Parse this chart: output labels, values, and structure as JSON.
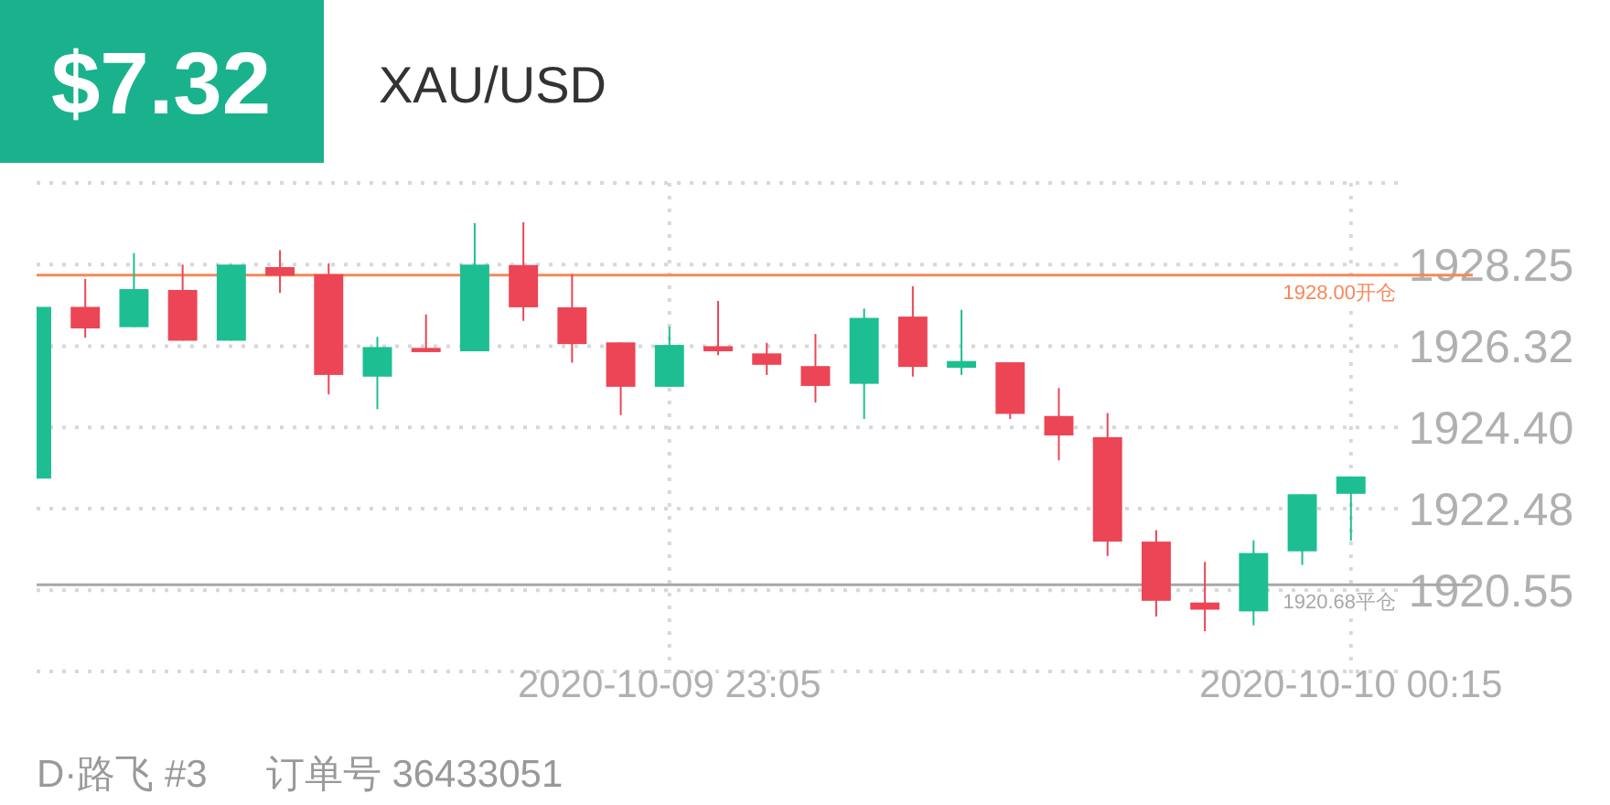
{
  "chart_data": {
    "type": "candlestick",
    "title": "$7.32",
    "subtitle": "XAU/USD",
    "x": [
      "2020-10-09T22:00",
      "2020-10-09T22:05",
      "2020-10-09T22:10",
      "2020-10-09T22:15",
      "2020-10-09T22:20",
      "2020-10-09T22:25",
      "2020-10-09T22:30",
      "2020-10-09T22:35",
      "2020-10-09T22:40",
      "2020-10-09T22:45",
      "2020-10-09T22:50",
      "2020-10-09T22:55",
      "2020-10-09T23:00",
      "2020-10-09T23:05",
      "2020-10-09T23:10",
      "2020-10-09T23:15",
      "2020-10-09T23:20",
      "2020-10-09T23:25",
      "2020-10-09T23:30",
      "2020-10-09T23:35",
      "2020-10-09T23:40",
      "2020-10-09T23:45",
      "2020-10-09T23:50",
      "2020-10-09T23:55",
      "2020-10-10T00:00",
      "2020-10-10T00:05",
      "2020-10-10T00:10",
      "2020-10-10T00:15"
    ],
    "ohlc": [
      [
        1923.19,
        1927.25,
        1923.19,
        1927.25
      ],
      [
        1927.25,
        1927.91,
        1926.52,
        1926.74
      ],
      [
        1926.77,
        1928.52,
        1926.77,
        1927.67
      ],
      [
        1927.65,
        1928.25,
        1926.45,
        1926.45
      ],
      [
        1926.45,
        1928.25,
        1926.45,
        1928.25
      ],
      [
        1928.19,
        1928.59,
        1927.58,
        1927.99
      ],
      [
        1928.02,
        1928.28,
        1925.18,
        1925.64
      ],
      [
        1925.6,
        1926.54,
        1924.83,
        1926.3
      ],
      [
        1926.28,
        1927.07,
        1926.18,
        1926.18
      ],
      [
        1926.2,
        1929.23,
        1926.2,
        1928.25
      ],
      [
        1928.24,
        1929.25,
        1926.92,
        1927.24
      ],
      [
        1927.24,
        1928.02,
        1925.93,
        1926.37
      ],
      [
        1926.41,
        1926.41,
        1924.69,
        1925.36
      ],
      [
        1925.36,
        1926.78,
        1925.36,
        1926.35
      ],
      [
        1926.32,
        1927.39,
        1926.11,
        1926.2
      ],
      [
        1926.15,
        1926.4,
        1925.64,
        1925.88
      ],
      [
        1925.85,
        1926.61,
        1924.99,
        1925.38
      ],
      [
        1925.43,
        1927.21,
        1924.6,
        1926.99
      ],
      [
        1927.02,
        1927.74,
        1925.6,
        1925.83
      ],
      [
        1925.81,
        1927.18,
        1925.64,
        1925.97
      ],
      [
        1925.94,
        1925.94,
        1924.6,
        1924.72
      ],
      [
        1924.67,
        1925.33,
        1923.62,
        1924.21
      ],
      [
        1924.17,
        1924.74,
        1921.36,
        1921.7
      ],
      [
        1921.7,
        1921.97,
        1919.93,
        1920.3
      ],
      [
        1920.26,
        1921.22,
        1919.58,
        1920.09
      ],
      [
        1920.05,
        1921.73,
        1919.72,
        1921.43
      ],
      [
        1921.47,
        1922.82,
        1921.15,
        1922.82
      ],
      [
        1922.83,
        1923.24,
        1921.72,
        1923.24
      ]
    ],
    "colors": [
      "#1dbf92",
      "#ec4555",
      "#1dbf92",
      "#ec4555",
      "#1dbf92",
      "#ec4555",
      "#ec4555",
      "#1dbf92",
      "#ec4555",
      "#1dbf92",
      "#ec4555",
      "#ec4555",
      "#ec4555",
      "#1dbf92",
      "#ec4555",
      "#ec4555",
      "#ec4555",
      "#1dbf92",
      "#ec4555",
      "#1dbf92",
      "#ec4555",
      "#ec4555",
      "#ec4555",
      "#ec4555",
      "#ec4555",
      "#1dbf92",
      "#1dbf92",
      "#1dbf92"
    ],
    "xlim": [
      "2020-10-09T22:00",
      "2020-10-10T00:20"
    ],
    "xticks": [
      {
        "value": "2020-10-09T23:05",
        "label": "2020-10-09 23:05"
      },
      {
        "value": "2020-10-10T00:15",
        "label": "2020-10-10 00:15"
      }
    ],
    "ylim": [
      1918.63,
      1930.18
    ],
    "yticks": [
      {
        "value": 1918.63,
        "label": null
      },
      {
        "value": 1920.55,
        "label": "1920.55"
      },
      {
        "value": 1922.48,
        "label": "1922.48"
      },
      {
        "value": 1924.4,
        "label": "1924.40"
      },
      {
        "value": 1926.32,
        "label": "1926.32"
      },
      {
        "value": 1928.25,
        "label": "1928.25"
      },
      {
        "value": 1930.18,
        "label": null
      }
    ],
    "grid": true,
    "ref_lines": [
      {
        "axis": "y",
        "value": 1928.0,
        "label": "1928.00开仓",
        "color": "#f5895a"
      },
      {
        "axis": "y",
        "value": 1920.68,
        "label": "1920.68平仓",
        "color": "#a8a8a8"
      }
    ],
    "annotations": [
      "D·路飞 #3",
      "订单号 36433051"
    ]
  }
}
